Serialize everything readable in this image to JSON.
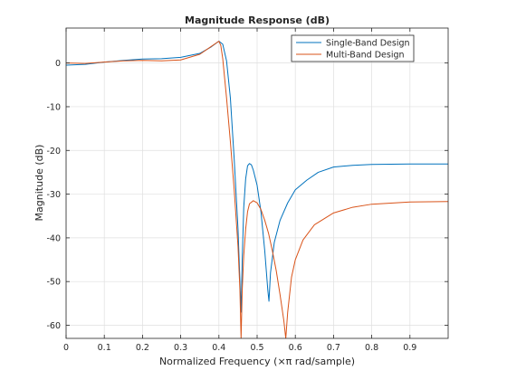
{
  "chart_data": {
    "type": "line",
    "title": "Magnitude Response (dB)",
    "xlabel": "Normalized Frequency (×π rad/sample)",
    "ylabel": "Magnitude (dB)",
    "xlim": [
      0,
      1
    ],
    "ylim": [
      -63,
      8
    ],
    "xticks": [
      0,
      0.1,
      0.2,
      0.3,
      0.4,
      0.5,
      0.6,
      0.7,
      0.8,
      0.9
    ],
    "xtick_labels": [
      "0",
      "0.1",
      "0.2",
      "0.3",
      "0.4",
      "0.5",
      "0.6",
      "0.7",
      "0.8",
      "0.9"
    ],
    "yticks": [
      0,
      -10,
      -20,
      -30,
      -40,
      -50,
      -60
    ],
    "ytick_labels": [
      "0",
      "-10",
      "-20",
      "-30",
      "-40",
      "-50",
      "-60"
    ],
    "grid": true,
    "legend_position": "top-right",
    "colors": {
      "single": "#0072bd",
      "multi": "#d95319"
    },
    "series": [
      {
        "name": "Single-Band Design",
        "color": "#0072bd",
        "points": [
          [
            0,
            -0.5
          ],
          [
            0.05,
            -0.3
          ],
          [
            0.1,
            0.2
          ],
          [
            0.15,
            0.6
          ],
          [
            0.2,
            0.9
          ],
          [
            0.25,
            1.0
          ],
          [
            0.3,
            1.3
          ],
          [
            0.35,
            2.2
          ],
          [
            0.38,
            3.7
          ],
          [
            0.4,
            5.0
          ],
          [
            0.41,
            4.3
          ],
          [
            0.42,
            0.5
          ],
          [
            0.43,
            -8
          ],
          [
            0.44,
            -22
          ],
          [
            0.45,
            -38
          ],
          [
            0.455,
            -50
          ],
          [
            0.458,
            -57
          ],
          [
            0.461,
            -45
          ],
          [
            0.465,
            -33
          ],
          [
            0.47,
            -26.5
          ],
          [
            0.475,
            -23.5
          ],
          [
            0.48,
            -23
          ],
          [
            0.485,
            -23.3
          ],
          [
            0.49,
            -24.5
          ],
          [
            0.5,
            -28
          ],
          [
            0.51,
            -34
          ],
          [
            0.52,
            -43
          ],
          [
            0.528,
            -52
          ],
          [
            0.531,
            -54.5
          ],
          [
            0.535,
            -48
          ],
          [
            0.545,
            -41
          ],
          [
            0.56,
            -36
          ],
          [
            0.58,
            -32
          ],
          [
            0.6,
            -29
          ],
          [
            0.63,
            -26.8
          ],
          [
            0.66,
            -25
          ],
          [
            0.7,
            -23.8
          ],
          [
            0.75,
            -23.4
          ],
          [
            0.8,
            -23.2
          ],
          [
            0.9,
            -23.1
          ],
          [
            1.0,
            -23.1
          ]
        ]
      },
      {
        "name": "Multi-Band Design",
        "color": "#d95319",
        "points": [
          [
            0,
            0
          ],
          [
            0.05,
            -0.1
          ],
          [
            0.1,
            0.2
          ],
          [
            0.15,
            0.5
          ],
          [
            0.2,
            0.6
          ],
          [
            0.25,
            0.5
          ],
          [
            0.3,
            0.7
          ],
          [
            0.35,
            2.0
          ],
          [
            0.38,
            3.8
          ],
          [
            0.4,
            5.0
          ],
          [
            0.405,
            4.0
          ],
          [
            0.41,
            1.0
          ],
          [
            0.42,
            -8
          ],
          [
            0.43,
            -18
          ],
          [
            0.44,
            -29
          ],
          [
            0.45,
            -42
          ],
          [
            0.455,
            -52
          ],
          [
            0.458,
            -63
          ],
          [
            0.461,
            -52
          ],
          [
            0.465,
            -44
          ],
          [
            0.47,
            -38
          ],
          [
            0.475,
            -34
          ],
          [
            0.48,
            -32.2
          ],
          [
            0.49,
            -31.5
          ],
          [
            0.5,
            -32
          ],
          [
            0.51,
            -33.5
          ],
          [
            0.52,
            -36
          ],
          [
            0.53,
            -39
          ],
          [
            0.54,
            -43
          ],
          [
            0.55,
            -47.5
          ],
          [
            0.56,
            -53
          ],
          [
            0.57,
            -59
          ],
          [
            0.575,
            -63
          ],
          [
            0.58,
            -57
          ],
          [
            0.59,
            -49
          ],
          [
            0.6,
            -45
          ],
          [
            0.62,
            -40.5
          ],
          [
            0.65,
            -37
          ],
          [
            0.7,
            -34.3
          ],
          [
            0.75,
            -33
          ],
          [
            0.8,
            -32.3
          ],
          [
            0.9,
            -31.8
          ],
          [
            1.0,
            -31.7
          ]
        ]
      }
    ]
  }
}
